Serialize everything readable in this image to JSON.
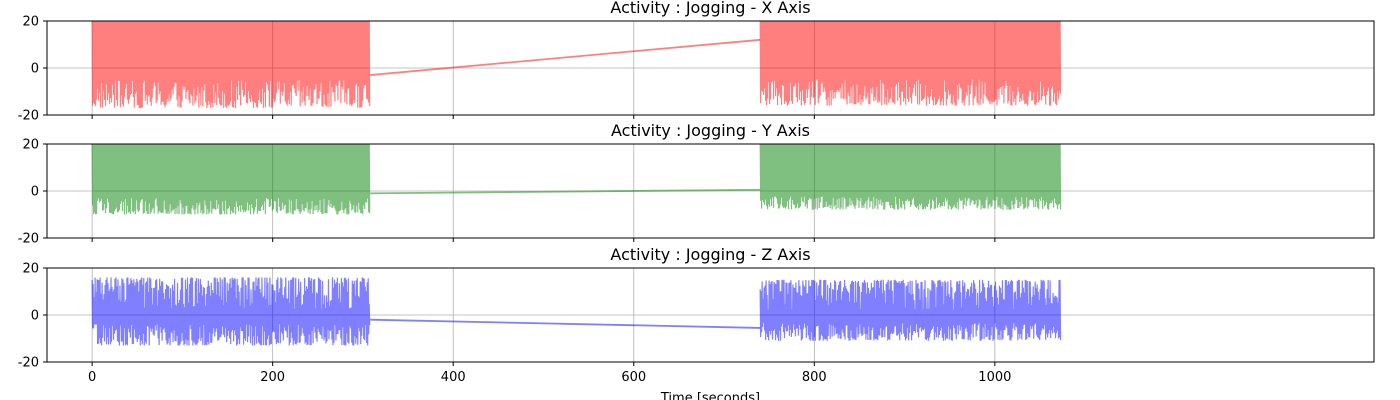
{
  "chart_data": [
    {
      "type": "line",
      "title": "Activity : Jogging - X Axis",
      "color": "#ff0000",
      "opacity": 0.5,
      "grid": true,
      "xlim": [
        -50,
        1420
      ],
      "ylim": [
        -20,
        20
      ],
      "yticks": [
        "20",
        "0",
        "-20"
      ],
      "ytick_values": [
        20,
        0,
        -20
      ],
      "segments": [
        {
          "x_start": 0,
          "x_end": 308,
          "y_min": -17,
          "y_max": 20
        },
        {
          "x_start": 740,
          "x_end": 1073,
          "y_min": -16,
          "y_max": 20
        }
      ],
      "bridge": [
        {
          "x": 308,
          "y": -3
        },
        {
          "x": 740,
          "y": 12
        }
      ]
    },
    {
      "type": "line",
      "title": "Activity : Jogging - Y Axis",
      "color": "#008000",
      "opacity": 0.5,
      "grid": true,
      "xlim": [
        -50,
        1420
      ],
      "ylim": [
        -20,
        20
      ],
      "yticks": [
        "20",
        "0",
        "-20"
      ],
      "ytick_values": [
        20,
        0,
        -20
      ],
      "segments": [
        {
          "x_start": 0,
          "x_end": 308,
          "y_min": -10,
          "y_max": 20
        },
        {
          "x_start": 740,
          "x_end": 1073,
          "y_min": -8,
          "y_max": 20
        }
      ],
      "bridge": [
        {
          "x": 308,
          "y": -1
        },
        {
          "x": 740,
          "y": 0.5
        }
      ]
    },
    {
      "type": "line",
      "title": "Activity : Jogging - Z Axis",
      "color": "#0000ff",
      "opacity": 0.5,
      "grid": true,
      "xlim": [
        -50,
        1420
      ],
      "ylim": [
        -20,
        20
      ],
      "yticks": [
        "20",
        "0",
        "-20"
      ],
      "ytick_values": [
        20,
        0,
        -20
      ],
      "xticks": [
        "0",
        "200",
        "400",
        "600",
        "800",
        "1000"
      ],
      "xtick_values": [
        0,
        200,
        400,
        600,
        800,
        1000
      ],
      "xlabel": "Time [seconds]",
      "segments": [
        {
          "x_start": 0,
          "x_end": 308,
          "y_min": -13,
          "y_max": 16
        },
        {
          "x_start": 740,
          "x_end": 1073,
          "y_min": -11,
          "y_max": 15
        }
      ],
      "bridge": [
        {
          "x": 308,
          "y": -2
        },
        {
          "x": 740,
          "y": -5.5
        }
      ]
    }
  ]
}
